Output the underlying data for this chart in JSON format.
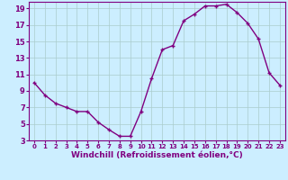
{
  "x": [
    0,
    1,
    2,
    3,
    4,
    5,
    6,
    7,
    8,
    9,
    10,
    11,
    12,
    13,
    14,
    15,
    16,
    17,
    18,
    19,
    20,
    21,
    22,
    23
  ],
  "y": [
    10,
    8.5,
    7.5,
    7,
    6.5,
    6.5,
    5.2,
    4.3,
    3.5,
    3.5,
    6.5,
    10.5,
    14,
    14.5,
    17.5,
    18.3,
    19.3,
    19.3,
    19.5,
    18.5,
    17.2,
    15.3,
    11.2,
    9.7
  ],
  "line_color": "#800080",
  "marker": "+",
  "marker_size": 3,
  "bg_color": "#cceeff",
  "grid_color": "#aacccc",
  "xlabel": "Windchill (Refroidissement éolien,°C)",
  "xlabel_color": "#800080",
  "tick_color": "#800080",
  "ylim": [
    3,
    19.8
  ],
  "xlim": [
    -0.5,
    23.5
  ],
  "yticks": [
    3,
    5,
    7,
    9,
    11,
    13,
    15,
    17,
    19
  ],
  "xticks": [
    0,
    1,
    2,
    3,
    4,
    5,
    6,
    7,
    8,
    9,
    10,
    11,
    12,
    13,
    14,
    15,
    16,
    17,
    18,
    19,
    20,
    21,
    22,
    23
  ]
}
